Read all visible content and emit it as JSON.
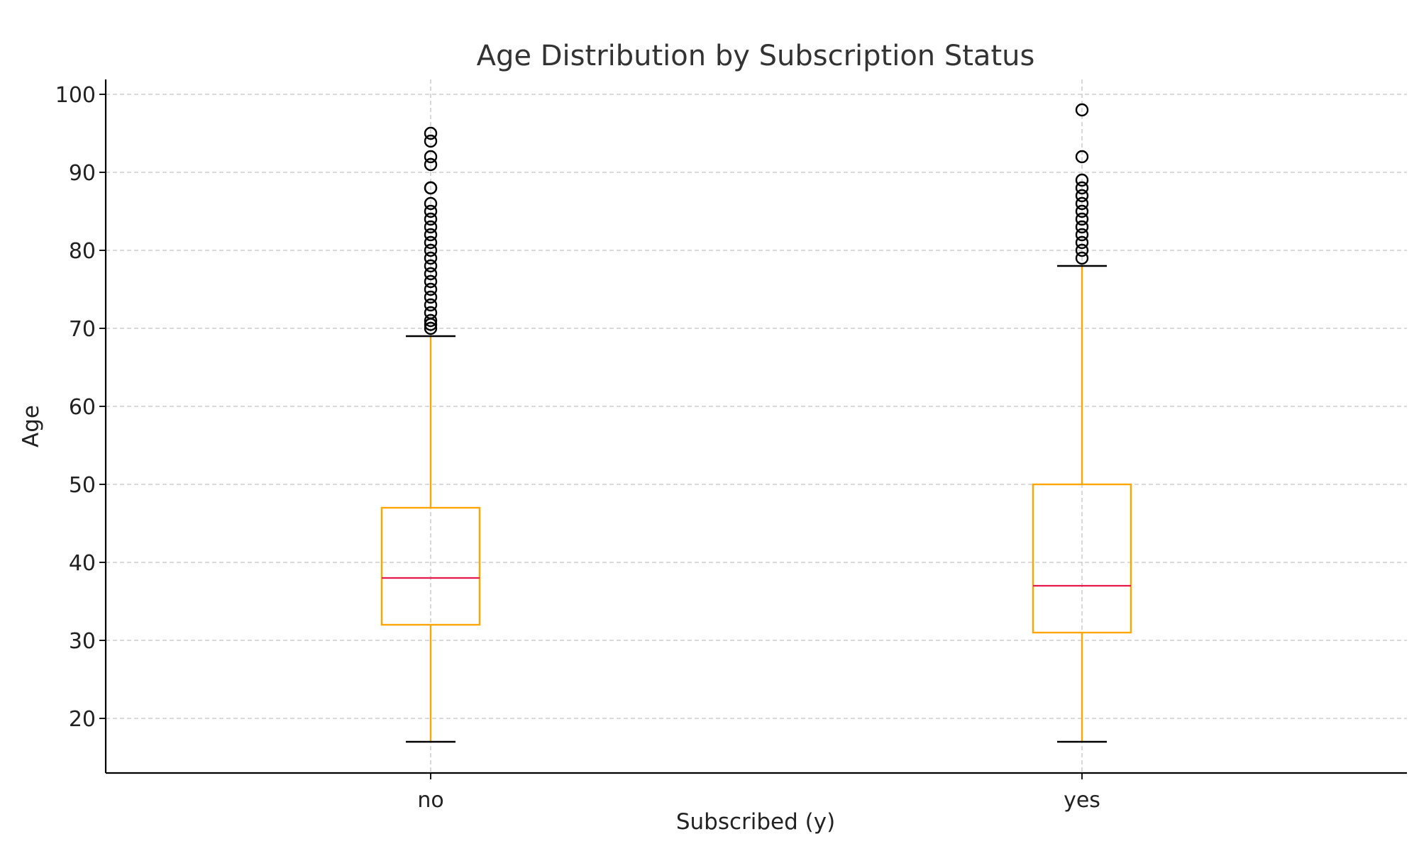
{
  "chart_data": {
    "type": "box",
    "title": "Age Distribution by Subscription Status",
    "xlabel": "Subscribed (y)",
    "ylabel": "Age",
    "ylim": [
      13,
      102
    ],
    "yticks": [
      20,
      30,
      40,
      50,
      60,
      70,
      80,
      90,
      100
    ],
    "grid": true,
    "categories": [
      "no",
      "yes"
    ],
    "boxes": [
      {
        "category": "no",
        "whisker_low": 17,
        "q1": 32,
        "median": 38,
        "q3": 47,
        "whisker_high": 69,
        "outliers": [
          70,
          70.5,
          71,
          72,
          73,
          74,
          75,
          76,
          77,
          78,
          79,
          80,
          81,
          82,
          83,
          84,
          85,
          86,
          88,
          88,
          91,
          92,
          94,
          95
        ]
      },
      {
        "category": "yes",
        "whisker_low": 17,
        "q1": 31,
        "median": 37,
        "q3": 50,
        "whisker_high": 78,
        "outliers": [
          79,
          80,
          81,
          82,
          83,
          84,
          85,
          86,
          87,
          88,
          89,
          92,
          98
        ]
      }
    ],
    "colors": {
      "box": "#ffa500",
      "median": "#e6194b",
      "cap": "#000000",
      "flier": "#000000",
      "grid": "#c4c4c4"
    }
  }
}
